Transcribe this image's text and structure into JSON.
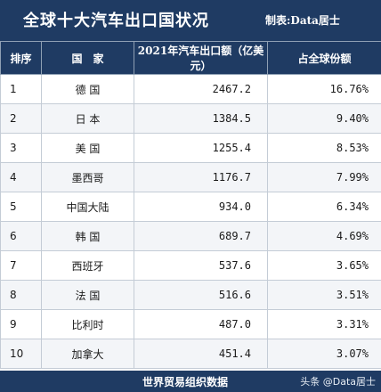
{
  "header": {
    "title": "全球十大汽车出口国状况",
    "author": "制表:Data居士"
  },
  "table": {
    "columns": [
      "排序",
      "国　家",
      "2021年汽车出口额（亿美元）",
      "占全球份额"
    ],
    "rows": [
      {
        "rank": "1",
        "country": "德 国",
        "value": "2467.2",
        "share": "16.76%"
      },
      {
        "rank": "2",
        "country": "日 本",
        "value": "1384.5",
        "share": "9.40%"
      },
      {
        "rank": "3",
        "country": "美 国",
        "value": "1255.4",
        "share": "8.53%"
      },
      {
        "rank": "4",
        "country": "墨西哥",
        "value": "1176.7",
        "share": "7.99%"
      },
      {
        "rank": "5",
        "country": "中国大陆",
        "value": "934.0",
        "share": "6.34%"
      },
      {
        "rank": "6",
        "country": "韩 国",
        "value": "689.7",
        "share": "4.69%"
      },
      {
        "rank": "7",
        "country": "西班牙",
        "value": "537.6",
        "share": "3.65%"
      },
      {
        "rank": "8",
        "country": "法 国",
        "value": "516.6",
        "share": "3.51%"
      },
      {
        "rank": "9",
        "country": "比利时",
        "value": "487.0",
        "share": "3.31%"
      },
      {
        "rank": "10",
        "country": "加拿大",
        "value": "451.4",
        "share": "3.07%"
      }
    ]
  },
  "footer": {
    "source": "世界贸易组织数据",
    "watermark": "头条 @Data居士"
  },
  "colors": {
    "header_bg": "#1f3b63",
    "header_text": "#ffffff",
    "row_alt_bg": "#f3f5f8",
    "grid_line": "#c4ccd6"
  }
}
